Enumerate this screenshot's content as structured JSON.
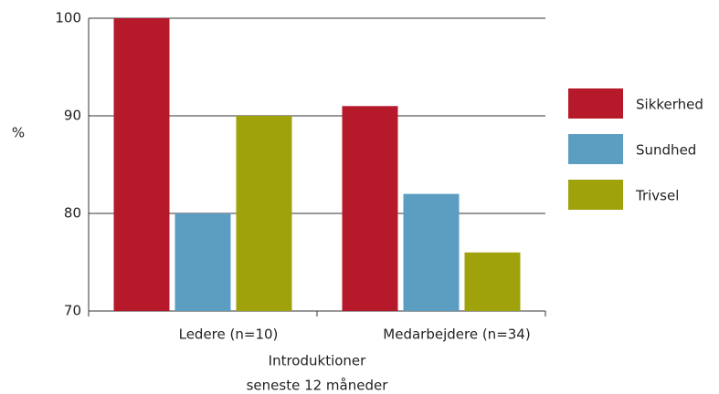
{
  "chart_data": {
    "type": "bar",
    "ylabel": "%",
    "xlabel": [
      "Introduktioner",
      "seneste 12 måneder"
    ],
    "categories": [
      "Ledere (n=10)",
      "Medarbejdere (n=34)"
    ],
    "series": [
      {
        "name": "Sikkerhed",
        "color": "#b5192a",
        "values": [
          100,
          91
        ]
      },
      {
        "name": "Sundhed",
        "color": "#5b9ec2",
        "values": [
          80,
          82
        ]
      },
      {
        "name": "Trivsel",
        "color": "#9fa20a",
        "values": [
          90,
          76
        ]
      }
    ],
    "ylim": [
      70,
      100
    ],
    "yticks": [
      70,
      80,
      90,
      100
    ],
    "grid": true
  }
}
